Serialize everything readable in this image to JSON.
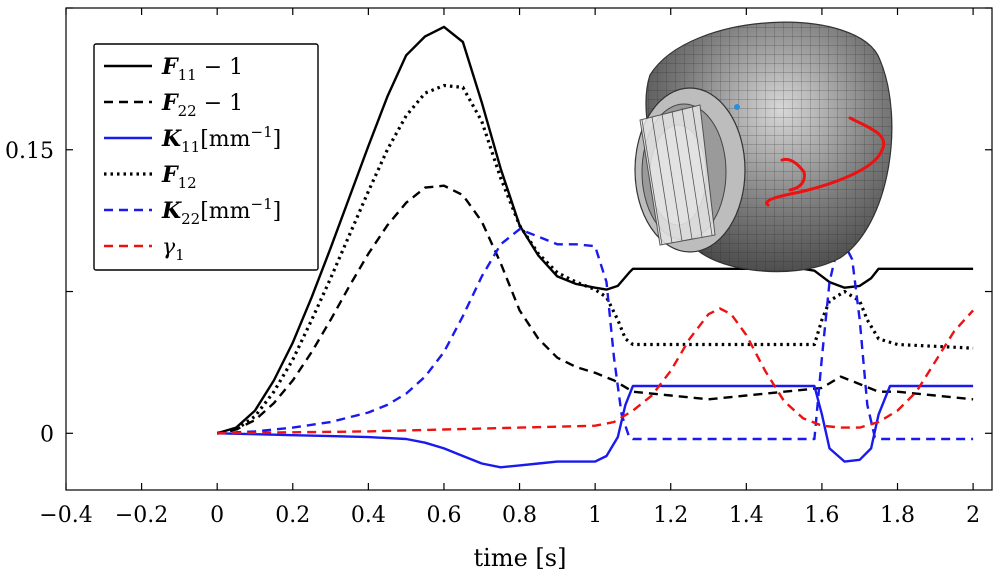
{
  "chart_data": {
    "type": "line",
    "xlabel": "time [s]",
    "ylabel": "",
    "xlim": [
      -0.4,
      2.05
    ],
    "ylim": [
      -0.03,
      0.225
    ],
    "x_ticks": [
      -0.4,
      -0.2,
      0,
      0.2,
      0.4,
      0.6,
      0.8,
      1,
      1.2,
      1.4,
      1.6,
      1.8,
      2
    ],
    "x_tick_labels": [
      "−0.4",
      "−0.2",
      "0",
      "0.2",
      "0.4",
      "0.6",
      "0.8",
      "1",
      "1.2",
      "1.4",
      "1.6",
      "1.8",
      "2"
    ],
    "y_ticks": [
      0,
      0.15
    ],
    "y_tick_labels": [
      "0",
      "0.15"
    ],
    "grid": false,
    "legend_position": "top-left",
    "series": [
      {
        "name": "F11 − 1",
        "legend": {
          "sym": "F",
          "sub": "11",
          "tail": " − 1"
        },
        "color": "#000000",
        "dash": "solid",
        "x": [
          0,
          0.05,
          0.1,
          0.15,
          0.2,
          0.25,
          0.3,
          0.35,
          0.4,
          0.45,
          0.5,
          0.55,
          0.6,
          0.65,
          0.7,
          0.75,
          0.8,
          0.85,
          0.9,
          0.95,
          1.0,
          1.03,
          1.06,
          1.09,
          1.1,
          1.2,
          1.3,
          1.4,
          1.5,
          1.55,
          1.58,
          1.62,
          1.66,
          1.7,
          1.73,
          1.75,
          1.8,
          1.9,
          2.0
        ],
        "y": [
          0,
          0.003,
          0.012,
          0.028,
          0.048,
          0.072,
          0.098,
          0.125,
          0.152,
          0.178,
          0.2,
          0.21,
          0.215,
          0.207,
          0.175,
          0.14,
          0.11,
          0.094,
          0.083,
          0.079,
          0.077,
          0.076,
          0.078,
          0.085,
          0.087,
          0.087,
          0.087,
          0.087,
          0.087,
          0.087,
          0.086,
          0.08,
          0.077,
          0.078,
          0.082,
          0.087,
          0.087,
          0.087,
          0.087
        ]
      },
      {
        "name": "F22 − 1",
        "legend": {
          "sym": "F",
          "sub": "22",
          "tail": " − 1"
        },
        "color": "#000000",
        "dash": "9 6",
        "x": [
          0,
          0.05,
          0.1,
          0.15,
          0.2,
          0.25,
          0.3,
          0.35,
          0.4,
          0.45,
          0.5,
          0.55,
          0.6,
          0.65,
          0.7,
          0.75,
          0.8,
          0.85,
          0.9,
          0.95,
          1.0,
          1.05,
          1.1,
          1.2,
          1.3,
          1.4,
          1.5,
          1.6,
          1.65,
          1.7,
          1.75,
          1.8,
          1.9,
          2.0
        ],
        "y": [
          0,
          0.002,
          0.007,
          0.016,
          0.028,
          0.043,
          0.06,
          0.078,
          0.095,
          0.11,
          0.122,
          0.13,
          0.131,
          0.126,
          0.112,
          0.09,
          0.065,
          0.05,
          0.04,
          0.035,
          0.032,
          0.028,
          0.022,
          0.02,
          0.018,
          0.02,
          0.022,
          0.024,
          0.03,
          0.026,
          0.022,
          0.022,
          0.02,
          0.018
        ]
      },
      {
        "name": "K11[mm−1]",
        "legend": {
          "sym": "K",
          "sub": "11",
          "tail": "[mm",
          "sup": "−1",
          "end": "]"
        },
        "color": "#1a1aee",
        "dash": "solid",
        "x": [
          0,
          0.1,
          0.2,
          0.3,
          0.4,
          0.5,
          0.55,
          0.6,
          0.65,
          0.7,
          0.75,
          0.8,
          0.85,
          0.9,
          0.95,
          1.0,
          1.03,
          1.06,
          1.08,
          1.1,
          1.2,
          1.3,
          1.4,
          1.5,
          1.58,
          1.6,
          1.62,
          1.66,
          1.7,
          1.73,
          1.75,
          1.78,
          1.8,
          1.9,
          2.0
        ],
        "y": [
          0,
          -0.0005,
          -0.001,
          -0.0015,
          -0.002,
          -0.003,
          -0.005,
          -0.008,
          -0.012,
          -0.016,
          -0.018,
          -0.017,
          -0.016,
          -0.015,
          -0.015,
          -0.015,
          -0.012,
          -0.002,
          0.015,
          0.025,
          0.025,
          0.025,
          0.025,
          0.025,
          0.025,
          0.01,
          -0.008,
          -0.015,
          -0.014,
          -0.008,
          0.01,
          0.025,
          0.025,
          0.025,
          0.025
        ]
      },
      {
        "name": "F12",
        "legend": {
          "sym": "F",
          "sub": "12",
          "tail": ""
        },
        "color": "#000000",
        "dash": "2.5 4",
        "x": [
          0,
          0.05,
          0.1,
          0.15,
          0.2,
          0.25,
          0.3,
          0.35,
          0.4,
          0.45,
          0.5,
          0.55,
          0.6,
          0.65,
          0.7,
          0.75,
          0.8,
          0.85,
          0.9,
          0.95,
          1.0,
          1.03,
          1.06,
          1.08,
          1.1,
          1.2,
          1.3,
          1.4,
          1.5,
          1.58,
          1.6,
          1.62,
          1.66,
          1.7,
          1.72,
          1.75,
          1.8,
          1.9,
          2.0
        ],
        "y": [
          0,
          0.002,
          0.009,
          0.022,
          0.039,
          0.06,
          0.082,
          0.105,
          0.128,
          0.15,
          0.168,
          0.18,
          0.184,
          0.183,
          0.165,
          0.135,
          0.11,
          0.095,
          0.085,
          0.08,
          0.076,
          0.072,
          0.06,
          0.05,
          0.047,
          0.047,
          0.047,
          0.047,
          0.047,
          0.047,
          0.06,
          0.07,
          0.075,
          0.07,
          0.06,
          0.05,
          0.047,
          0.046,
          0.045
        ]
      },
      {
        "name": "K22[mm−1]",
        "legend": {
          "sym": "K",
          "sub": "22",
          "tail": "[mm",
          "sup": "−1",
          "end": "]"
        },
        "color": "#1a1aee",
        "dash": "9 6",
        "x": [
          0,
          0.1,
          0.2,
          0.3,
          0.4,
          0.45,
          0.5,
          0.55,
          0.6,
          0.65,
          0.7,
          0.75,
          0.8,
          0.85,
          0.9,
          0.95,
          1.0,
          1.03,
          1.05,
          1.07,
          1.09,
          1.1,
          1.2,
          1.3,
          1.4,
          1.5,
          1.58,
          1.6,
          1.62,
          1.64,
          1.66,
          1.68,
          1.7,
          1.72,
          1.74,
          1.75,
          1.8,
          1.9,
          2.0
        ],
        "y": [
          0,
          0.001,
          0.003,
          0.006,
          0.011,
          0.015,
          0.021,
          0.03,
          0.043,
          0.062,
          0.083,
          0.1,
          0.108,
          0.104,
          0.1,
          0.1,
          0.099,
          0.08,
          0.04,
          0.01,
          -0.002,
          -0.003,
          -0.003,
          -0.003,
          -0.003,
          -0.003,
          -0.003,
          0.04,
          0.08,
          0.097,
          0.1,
          0.092,
          0.06,
          0.015,
          -0.002,
          -0.003,
          -0.003,
          -0.003,
          -0.003
        ]
      },
      {
        "name": "γ1",
        "legend": {
          "sym": "γ",
          "sub": "1",
          "tail": "",
          "greek": true
        },
        "color": "#ee1111",
        "dash": "9 6",
        "x": [
          0,
          0.2,
          0.4,
          0.6,
          0.8,
          1.0,
          1.05,
          1.1,
          1.15,
          1.2,
          1.25,
          1.3,
          1.33,
          1.36,
          1.4,
          1.45,
          1.5,
          1.55,
          1.6,
          1.65,
          1.7,
          1.75,
          1.8,
          1.85,
          1.9,
          1.95,
          2.0
        ],
        "y": [
          0,
          0.0005,
          0.001,
          0.002,
          0.003,
          0.004,
          0.006,
          0.012,
          0.02,
          0.033,
          0.05,
          0.063,
          0.066,
          0.063,
          0.052,
          0.033,
          0.017,
          0.008,
          0.004,
          0.003,
          0.003,
          0.006,
          0.012,
          0.022,
          0.038,
          0.054,
          0.065
        ]
      }
    ]
  }
}
